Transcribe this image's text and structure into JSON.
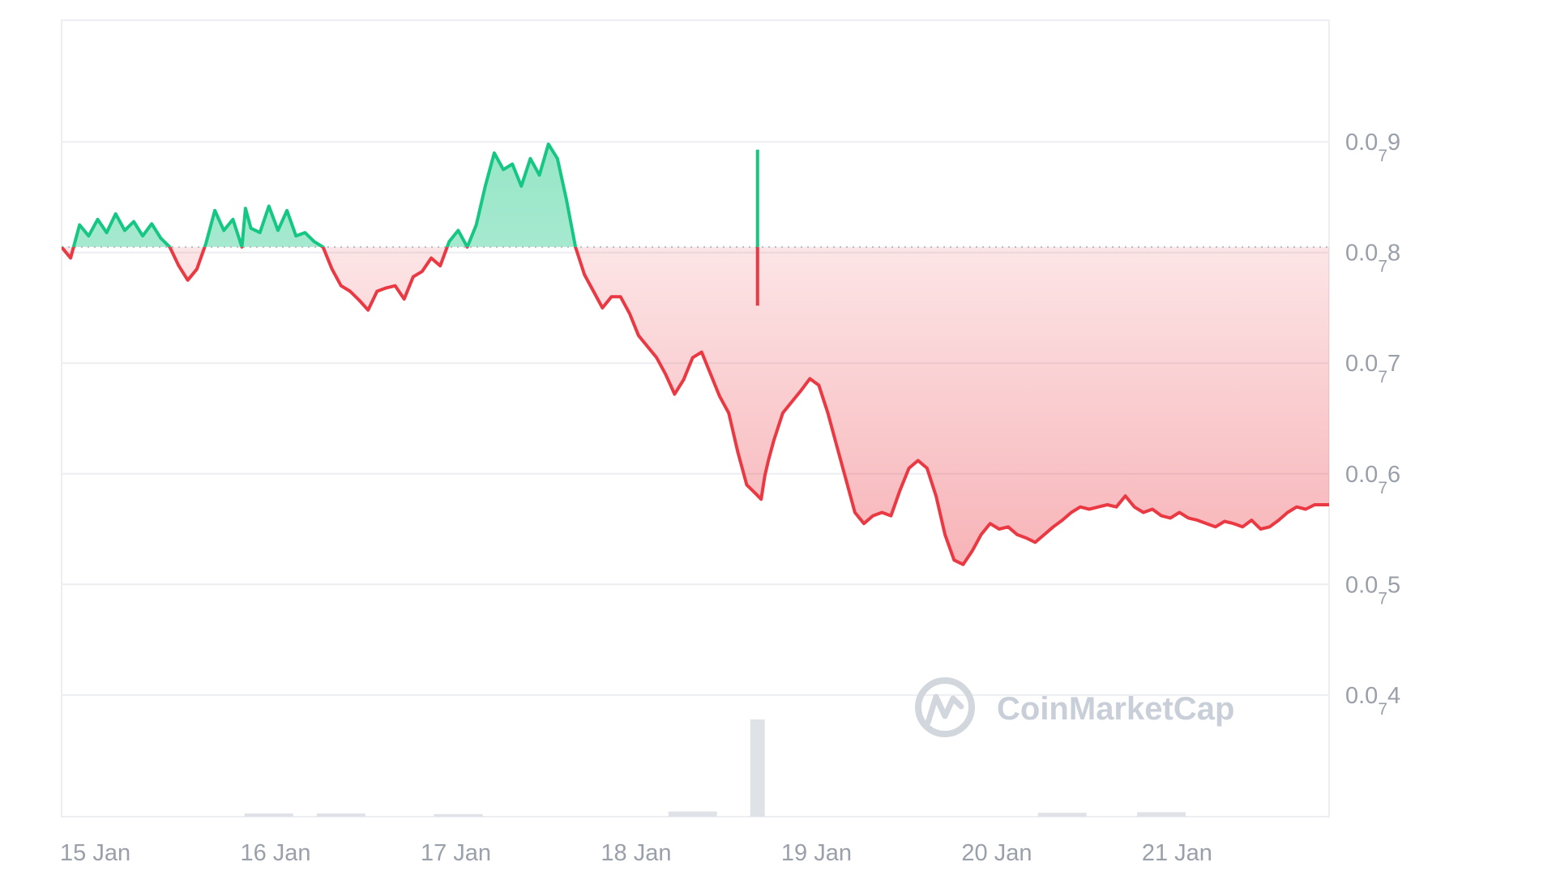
{
  "chart_data": {
    "type": "area",
    "watermark": "CoinMarketCap",
    "reference_price": 8.05e-08,
    "y_ticks": [
      {
        "value": 9e-08,
        "prefix": "0.0",
        "zeros": "7",
        "digit": "9"
      },
      {
        "value": 8e-08,
        "prefix": "0.0",
        "zeros": "7",
        "digit": "8"
      },
      {
        "value": 7e-08,
        "prefix": "0.0",
        "zeros": "7",
        "digit": "7"
      },
      {
        "value": 6e-08,
        "prefix": "0.0",
        "zeros": "7",
        "digit": "6"
      },
      {
        "value": 5e-08,
        "prefix": "0.0",
        "zeros": "7",
        "digit": "5"
      },
      {
        "value": 4e-08,
        "prefix": "0.0",
        "zeros": "7",
        "digit": "4"
      }
    ],
    "x_ticks": [
      {
        "t": 0.0,
        "label": "15 Jan"
      },
      {
        "t": 1.0,
        "label": "16 Jan"
      },
      {
        "t": 2.0,
        "label": "17 Jan"
      },
      {
        "t": 3.0,
        "label": "18 Jan"
      },
      {
        "t": 4.0,
        "label": "19 Jan"
      },
      {
        "t": 5.0,
        "label": "20 Jan"
      },
      {
        "t": 6.0,
        "label": "21 Jan"
      }
    ],
    "x_range_days": [
      0.0,
      7.03
    ],
    "y_range": [
      2.9e-08,
      1.01e-07
    ],
    "grid": true,
    "colors": {
      "up": "#16c784",
      "down": "#ea3943",
      "grid": "#eceef1",
      "axis_text": "#9aa0aa",
      "volume": "#dfe3e8"
    },
    "price_series": {
      "name": "Price",
      "t_days": [
        0.0,
        0.05,
        0.1,
        0.15,
        0.2,
        0.25,
        0.3,
        0.35,
        0.4,
        0.45,
        0.5,
        0.55,
        0.6,
        0.65,
        0.7,
        0.75,
        0.8,
        0.85,
        0.9,
        0.95,
        1.0,
        1.02,
        1.05,
        1.1,
        1.15,
        1.2,
        1.25,
        1.3,
        1.35,
        1.4,
        1.45,
        1.5,
        1.55,
        1.6,
        1.65,
        1.7,
        1.75,
        1.8,
        1.85,
        1.9,
        1.95,
        2.0,
        2.05,
        2.1,
        2.15,
        2.2,
        2.25,
        2.3,
        2.35,
        2.4,
        2.45,
        2.5,
        2.55,
        2.6,
        2.65,
        2.7,
        2.75,
        2.8,
        2.85,
        2.9,
        2.95,
        3.0,
        3.05,
        3.1,
        3.15,
        3.2,
        3.25,
        3.3,
        3.35,
        3.4,
        3.45,
        3.5,
        3.55,
        3.6,
        3.65,
        3.7,
        3.75,
        3.8,
        3.85,
        3.88,
        3.9,
        3.92,
        3.95,
        4.0,
        4.05,
        4.1,
        4.15,
        4.2,
        4.25,
        4.3,
        4.35,
        4.4,
        4.45,
        4.5,
        4.55,
        4.6,
        4.65,
        4.7,
        4.75,
        4.8,
        4.85,
        4.9,
        4.95,
        5.0,
        5.05,
        5.1,
        5.15,
        5.2,
        5.25,
        5.3,
        5.35,
        5.4,
        5.45,
        5.5,
        5.55,
        5.6,
        5.65,
        5.7,
        5.75,
        5.8,
        5.85,
        5.9,
        5.95,
        6.0,
        6.05,
        6.1,
        6.15,
        6.2,
        6.25,
        6.3,
        6.35,
        6.4,
        6.45,
        6.5,
        6.55,
        6.6,
        6.65,
        6.7,
        6.75,
        6.8,
        6.85,
        6.9,
        6.95,
        7.03
      ],
      "values": [
        8.05e-08,
        7.95e-08,
        8.25e-08,
        8.15e-08,
        8.3e-08,
        8.18e-08,
        8.35e-08,
        8.2e-08,
        8.28e-08,
        8.15e-08,
        8.26e-08,
        8.13e-08,
        8.05e-08,
        7.88e-08,
        7.75e-08,
        7.85e-08,
        8.08e-08,
        8.38e-08,
        8.2e-08,
        8.3e-08,
        8.05e-08,
        8.4e-08,
        8.22e-08,
        8.18e-08,
        8.42e-08,
        8.2e-08,
        8.38e-08,
        8.15e-08,
        8.18e-08,
        8.1e-08,
        8.05e-08,
        7.85e-08,
        7.7e-08,
        7.65e-08,
        7.57e-08,
        7.48e-08,
        7.65e-08,
        7.68e-08,
        7.7e-08,
        7.58e-08,
        7.78e-08,
        7.83e-08,
        7.95e-08,
        7.88e-08,
        8.1e-08,
        8.2e-08,
        8.05e-08,
        8.25e-08,
        8.6e-08,
        8.9e-08,
        8.75e-08,
        8.8e-08,
        8.6e-08,
        8.85e-08,
        8.7e-08,
        8.98e-08,
        8.85e-08,
        8.48e-08,
        8.05e-08,
        7.8e-08,
        7.65e-08,
        7.5e-08,
        7.6e-08,
        7.6e-08,
        7.45e-08,
        7.25e-08,
        7.15e-08,
        7.05e-08,
        6.9e-08,
        6.72e-08,
        6.85e-08,
        7.05e-08,
        7.1e-08,
        6.9e-08,
        6.7e-08,
        6.55e-08,
        6.2e-08,
        5.9e-08,
        5.82e-08,
        5.77e-08,
        5.98e-08,
        6.12e-08,
        6.3e-08,
        6.55e-08,
        6.65e-08,
        6.75e-08,
        6.86e-08,
        6.8e-08,
        6.55e-08,
        6.25e-08,
        5.95e-08,
        5.65e-08,
        5.55e-08,
        5.62e-08,
        5.65e-08,
        5.62e-08,
        5.85e-08,
        6.05e-08,
        6.12e-08,
        6.05e-08,
        5.8e-08,
        5.45e-08,
        5.22e-08,
        5.18e-08,
        5.3e-08,
        5.45e-08,
        5.55e-08,
        5.5e-08,
        5.52e-08,
        5.45e-08,
        5.42e-08,
        5.38e-08,
        5.45e-08,
        5.52e-08,
        5.58e-08,
        5.65e-08,
        5.7e-08,
        5.68e-08,
        5.7e-08,
        5.72e-08,
        5.7e-08,
        5.8e-08,
        5.7e-08,
        5.65e-08,
        5.68e-08,
        5.62e-08,
        5.6e-08,
        5.65e-08,
        5.6e-08,
        5.58e-08,
        5.55e-08,
        5.52e-08,
        5.57e-08,
        5.55e-08,
        5.52e-08,
        5.58e-08,
        5.5e-08,
        5.52e-08,
        5.58e-08,
        5.65e-08,
        5.7e-08,
        5.68e-08,
        5.72e-08,
        5.72e-08
      ]
    },
    "spike": {
      "t_day": 3.86,
      "value": 8.93e-08
    },
    "volume_series": {
      "name": "Volume",
      "bars": [
        {
          "t": 1.15,
          "h": 0.01
        },
        {
          "t": 1.55,
          "h": 0.01
        },
        {
          "t": 2.2,
          "h": 0.008
        },
        {
          "t": 3.5,
          "h": 0.016
        },
        {
          "t": 3.86,
          "h": 0.3
        },
        {
          "t": 5.55,
          "h": 0.012
        },
        {
          "t": 6.1,
          "h": 0.014
        }
      ]
    }
  }
}
